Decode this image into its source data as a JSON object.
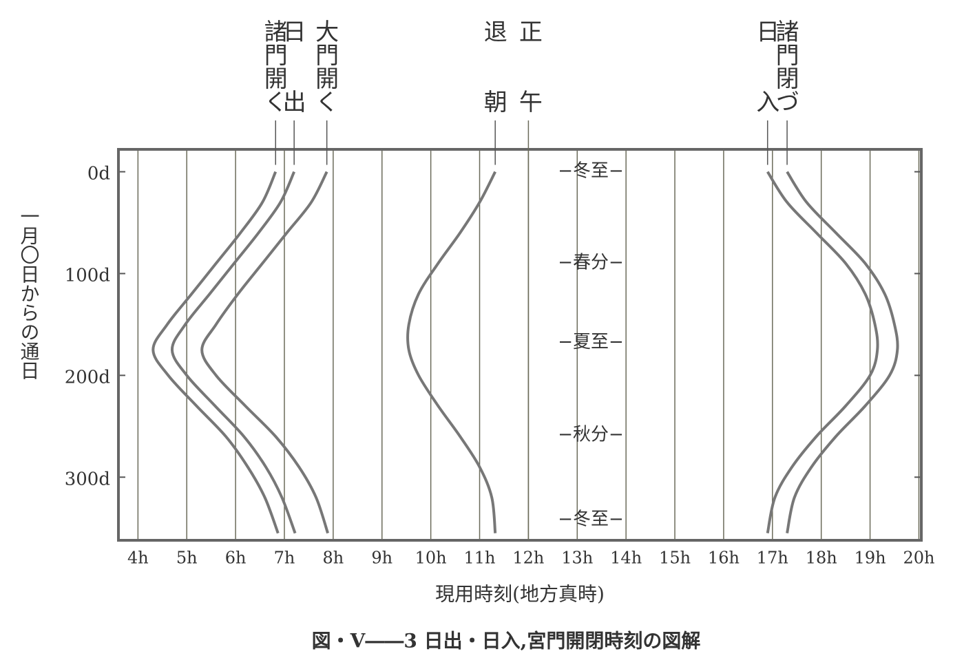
{
  "chart_data": {
    "type": "line",
    "caption": "図・V――3 日出・日入,宮門開閉時刻の図解",
    "x_label": "現用時刻(地方真時)",
    "y_label": "一月〇日からの通日",
    "xlim": [
      3.6,
      20.05
    ],
    "xticks": [
      {
        "value": 4,
        "label": "4h"
      },
      {
        "value": 5,
        "label": "5h"
      },
      {
        "value": 6,
        "label": "6h"
      },
      {
        "value": 7,
        "label": "7h"
      },
      {
        "value": 8,
        "label": "8h"
      },
      {
        "value": 9,
        "label": "9h"
      },
      {
        "value": 10,
        "label": "10h"
      },
      {
        "value": 11,
        "label": "11h"
      },
      {
        "value": 12,
        "label": "12h"
      },
      {
        "value": 13,
        "label": "13h"
      },
      {
        "value": 14,
        "label": "14h"
      },
      {
        "value": 15,
        "label": "15h"
      },
      {
        "value": 16,
        "label": "16h"
      },
      {
        "value": 17,
        "label": "17h"
      },
      {
        "value": 18,
        "label": "18h"
      },
      {
        "value": 19,
        "label": "19h"
      },
      {
        "value": 20,
        "label": "20h"
      }
    ],
    "ylim": [
      -22,
      362
    ],
    "y_inverted": true,
    "yticks": [
      {
        "value": 0,
        "label": "0d"
      },
      {
        "value": 100,
        "label": "100d"
      },
      {
        "value": 200,
        "label": "200d"
      },
      {
        "value": 300,
        "label": "300d"
      }
    ],
    "grid": true,
    "days": [
      0,
      30,
      60,
      90,
      120,
      150,
      175,
      200,
      230,
      260,
      290,
      320,
      355
    ],
    "series": [
      {
        "name": "諸門開く",
        "color": "#777777",
        "values": [
          6.82,
          6.55,
          6.1,
          5.6,
          5.1,
          4.6,
          4.31,
          4.62,
          5.2,
          5.8,
          6.25,
          6.6,
          6.87
        ]
      },
      {
        "name": "日出",
        "color": "#777777",
        "values": [
          7.2,
          6.92,
          6.47,
          5.97,
          5.47,
          4.97,
          4.7,
          5.0,
          5.58,
          6.17,
          6.62,
          6.95,
          7.22
        ]
      },
      {
        "name": "大門開く",
        "color": "#777777",
        "values": [
          7.87,
          7.55,
          7.05,
          6.55,
          6.05,
          5.6,
          5.31,
          5.6,
          6.2,
          6.82,
          7.3,
          7.65,
          7.89
        ]
      },
      {
        "name": "退朝",
        "color": "#777777",
        "values": [
          11.32,
          11.0,
          10.6,
          10.15,
          9.75,
          9.55,
          9.55,
          9.75,
          10.15,
          10.6,
          11.0,
          11.25,
          11.32
        ]
      },
      {
        "name": "日入",
        "color": "#777777",
        "values": [
          16.9,
          17.3,
          17.9,
          18.5,
          18.9,
          19.1,
          19.15,
          19.0,
          18.5,
          17.9,
          17.4,
          17.05,
          16.9
        ]
      },
      {
        "name": "諸門閉づ",
        "color": "#777777",
        "values": [
          17.3,
          17.7,
          18.3,
          18.9,
          19.3,
          19.5,
          19.56,
          19.4,
          18.9,
          18.3,
          17.8,
          17.45,
          17.3
        ]
      }
    ],
    "noon_line": {
      "label": "正午",
      "value": 12
    },
    "annotations": [
      {
        "text": "−冬至−",
        "day": 0
      },
      {
        "text": "−春分−",
        "day": 90
      },
      {
        "text": "−夏至−",
        "day": 168
      },
      {
        "text": "−秋分−",
        "day": 259
      },
      {
        "text": "−冬至−",
        "day": 342
      }
    ]
  }
}
